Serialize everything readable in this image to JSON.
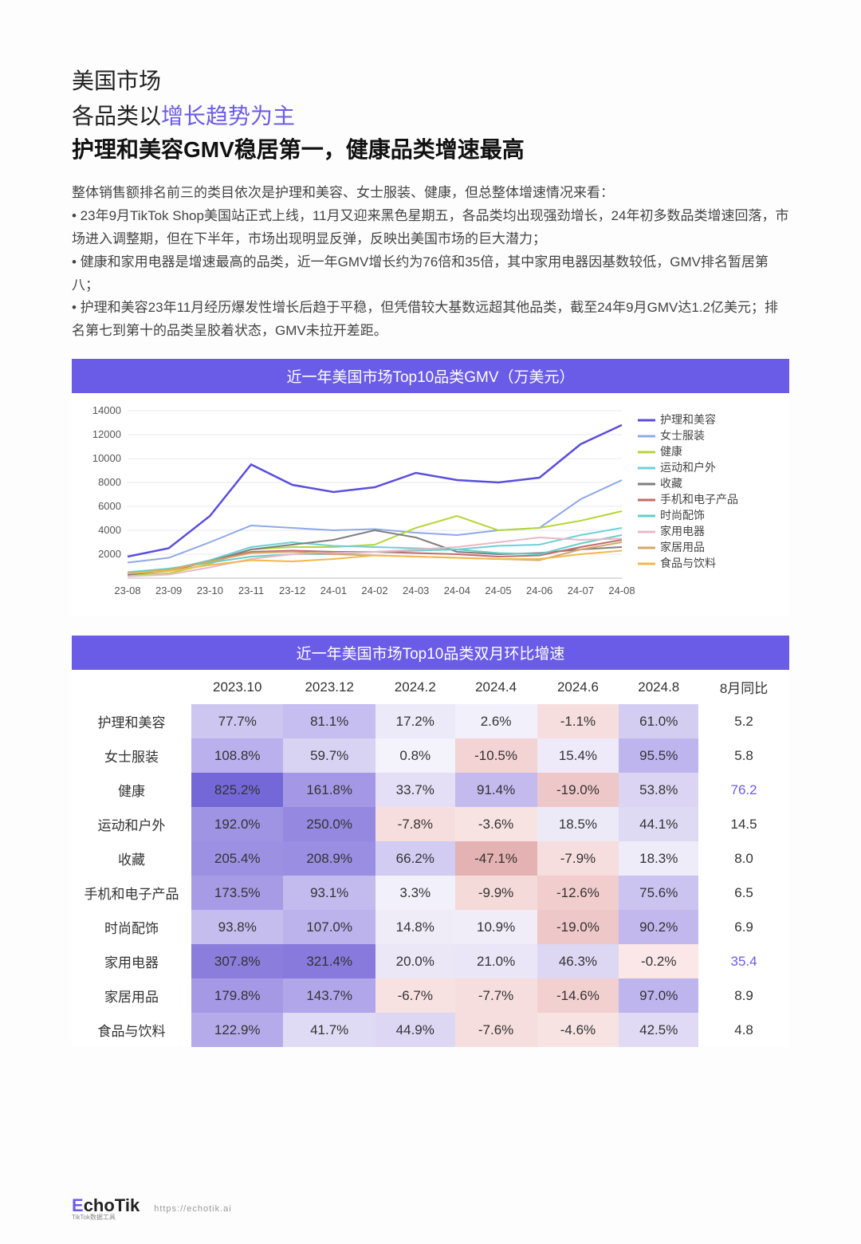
{
  "header": {
    "market": "美国市场",
    "subtitle_pre": "各品类以",
    "subtitle_accent": "增长趋势为主",
    "main_title": "护理和美容GMV稳居第一，健康品类增速最高"
  },
  "body": {
    "intro": "整体销售额排名前三的类目依次是护理和美容、女士服装、健康，但总整体增速情况来看：",
    "b1": "• 23年9月TikTok Shop美国站正式上线，11月又迎来黑色星期五，各品类均出现强劲增长，24年初多数品类增速回落，市场进入调整期，但在下半年，市场出现明显反弹，反映出美国市场的巨大潜力；",
    "b2": "• 健康和家用电器是增速最高的品类，近一年GMV增长约为76倍和35倍，其中家用电器因基数较低，GMV排名暂居第八；",
    "b3": "• 护理和美容23年11月经历爆发性增长后趋于平稳，但凭借较大基数远超其他品类，截至24年9月GMV达1.2亿美元；排名第七到第十的品类呈胶着状态，GMV未拉开差距。"
  },
  "chart": {
    "title": "近一年美国市场Top10品类GMV（万美元）",
    "type": "line",
    "background_color": "#ffffff",
    "title_bg": "#6b5ce7",
    "title_color": "#ffffff",
    "grid_color": "#e8e8f0",
    "axis_color": "#888888",
    "tick_fontsize": 13,
    "ylim": [
      0,
      14000
    ],
    "yticks": [
      2000,
      4000,
      6000,
      8000,
      10000,
      12000,
      14000
    ],
    "x_labels": [
      "23-08",
      "23-09",
      "23-10",
      "23-11",
      "23-12",
      "24-01",
      "24-02",
      "24-03",
      "24-04",
      "24-05",
      "24-06",
      "24-07",
      "24-08"
    ],
    "series": [
      {
        "name": "护理和美容",
        "color": "#5a4fdc",
        "width": 2.5,
        "values": [
          1800,
          2500,
          5200,
          9500,
          7800,
          7200,
          7600,
          8800,
          8200,
          8000,
          8400,
          11200,
          12800
        ]
      },
      {
        "name": "女士服装",
        "color": "#8fa8e8",
        "width": 2,
        "values": [
          1300,
          1700,
          3000,
          4400,
          4200,
          4000,
          4100,
          3800,
          3600,
          4000,
          4200,
          6600,
          8200
        ]
      },
      {
        "name": "健康",
        "color": "#b6d63a",
        "width": 2,
        "values": [
          200,
          400,
          1200,
          2400,
          2600,
          2600,
          2800,
          4200,
          5200,
          4000,
          4200,
          4800,
          5600
        ]
      },
      {
        "name": "运动和户外",
        "color": "#6fd0d8",
        "width": 2,
        "values": [
          400,
          700,
          1500,
          2600,
          3000,
          2700,
          2600,
          2500,
          2400,
          2700,
          2800,
          3600,
          4200
        ]
      },
      {
        "name": "收藏",
        "color": "#7f7f7f",
        "width": 2,
        "values": [
          300,
          600,
          1400,
          2400,
          2800,
          3200,
          4000,
          3400,
          2200,
          2000,
          2100,
          2400,
          2600
        ]
      },
      {
        "name": "手机和电子产品",
        "color": "#c46a6a",
        "width": 2,
        "values": [
          400,
          700,
          1400,
          2200,
          2300,
          2200,
          2200,
          2100,
          2000,
          1800,
          1900,
          2600,
          3200
        ]
      },
      {
        "name": "时尚配饰",
        "color": "#64cfc9",
        "width": 2,
        "values": [
          500,
          800,
          1300,
          1800,
          2000,
          2000,
          2200,
          2300,
          2400,
          2100,
          2000,
          2900,
          3600
        ]
      },
      {
        "name": "家用电器",
        "color": "#e9b8c7",
        "width": 2,
        "values": [
          150,
          300,
          900,
          1600,
          2000,
          2100,
          2200,
          2400,
          2600,
          3000,
          3400,
          3200,
          3300
        ]
      },
      {
        "name": "家居用品",
        "color": "#d4a86a",
        "width": 2,
        "values": [
          400,
          700,
          1400,
          2100,
          2200,
          2000,
          1900,
          1800,
          1700,
          1600,
          1500,
          2400,
          3000
        ]
      },
      {
        "name": "食品与饮料",
        "color": "#f2b84a",
        "width": 2,
        "values": [
          400,
          600,
          1100,
          1500,
          1400,
          1600,
          1900,
          1800,
          1700,
          1600,
          1600,
          2000,
          2300
        ]
      }
    ],
    "legend_fontsize": 14
  },
  "table": {
    "title": "近一年美国市场Top10品类双月环比增速",
    "columns": [
      "2023.10",
      "2023.12",
      "2024.2",
      "2024.4",
      "2024.6",
      "2024.8",
      "8月同比"
    ],
    "row_labels": [
      "护理和美容",
      "女士服装",
      "健康",
      "运动和户外",
      "收藏",
      "手机和电子产品",
      "时尚配饰",
      "家用电器",
      "家居用品",
      "食品与饮料"
    ],
    "cells": [
      [
        "77.7%",
        "81.1%",
        "17.2%",
        "2.6%",
        "-1.1%",
        "61.0%",
        "5.2"
      ],
      [
        "108.8%",
        "59.7%",
        "0.8%",
        "-10.5%",
        "15.4%",
        "95.5%",
        "5.8"
      ],
      [
        "825.2%",
        "161.8%",
        "33.7%",
        "91.4%",
        "-19.0%",
        "53.8%",
        "76.2"
      ],
      [
        "192.0%",
        "250.0%",
        "-7.8%",
        "-3.6%",
        "18.5%",
        "44.1%",
        "14.5"
      ],
      [
        "205.4%",
        "208.9%",
        "66.2%",
        "-47.1%",
        "-7.9%",
        "18.3%",
        "8.0"
      ],
      [
        "173.5%",
        "93.1%",
        "3.3%",
        "-9.9%",
        "-12.6%",
        "75.6%",
        "6.5"
      ],
      [
        "93.8%",
        "107.0%",
        "14.8%",
        "10.9%",
        "-19.0%",
        "90.2%",
        "6.9"
      ],
      [
        "307.8%",
        "321.4%",
        "20.0%",
        "21.0%",
        "46.3%",
        "-0.2%",
        "35.4"
      ],
      [
        "179.8%",
        "143.7%",
        "-6.7%",
        "-7.7%",
        "-14.6%",
        "97.0%",
        "8.9"
      ],
      [
        "122.9%",
        "41.7%",
        "44.9%",
        "-7.6%",
        "-4.6%",
        "42.5%",
        "4.8"
      ]
    ],
    "cell_colors": [
      [
        "#cdc6f0",
        "#c6bdf0",
        "#ece9f8",
        "#f2f0fa",
        "#f7dede",
        "#d4cdf2",
        "#ffffff"
      ],
      [
        "#bab0ee",
        "#d8d2f3",
        "#f4f2fb",
        "#f3d3d3",
        "#eeeaf9",
        "#bfb5ee",
        "#ffffff"
      ],
      [
        "#7468d8",
        "#a498e6",
        "#e4dff6",
        "#c4baee",
        "#eec8c8",
        "#dbd5f3",
        "#ffffff"
      ],
      [
        "#9f93e4",
        "#9488e0",
        "#f7dede",
        "#f8e3e3",
        "#edeaf8",
        "#dfdaf4",
        "#ffffff"
      ],
      [
        "#9c90e3",
        "#9a8ee2",
        "#d2cbf2",
        "#e4b2b2",
        "#f7dede",
        "#efecf9",
        "#ffffff"
      ],
      [
        "#a79be6",
        "#c3baee",
        "#f2f0fa",
        "#f5dada",
        "#f2cdcd",
        "#cbc3f0",
        "#ffffff"
      ],
      [
        "#c5bdee",
        "#bcb2ec",
        "#efecf8",
        "#f0edf9",
        "#eec8c8",
        "#c2b8ee",
        "#ffffff"
      ],
      [
        "#8a7ddc",
        "#877adc",
        "#ebe7f7",
        "#eae6f7",
        "#ddd7f4",
        "#fbe7e7",
        "#ffffff"
      ],
      [
        "#a599e5",
        "#b1a6e9",
        "#f8e1e1",
        "#f7dede",
        "#f3d0d0",
        "#beb4ee",
        "#ffffff"
      ],
      [
        "#b6abea",
        "#e0dbf5",
        "#ddd7f4",
        "#f7dede",
        "#f8e3e3",
        "#e0daf4",
        "#ffffff"
      ]
    ],
    "yoy_highlight_rows": [
      2,
      7
    ],
    "header_fontsize": 17,
    "cell_fontsize": 17
  },
  "footer": {
    "logo_e": "E",
    "logo_rest": "choTik",
    "logo_sub": "TikTok数据工具",
    "url": "https://echotik.ai"
  }
}
